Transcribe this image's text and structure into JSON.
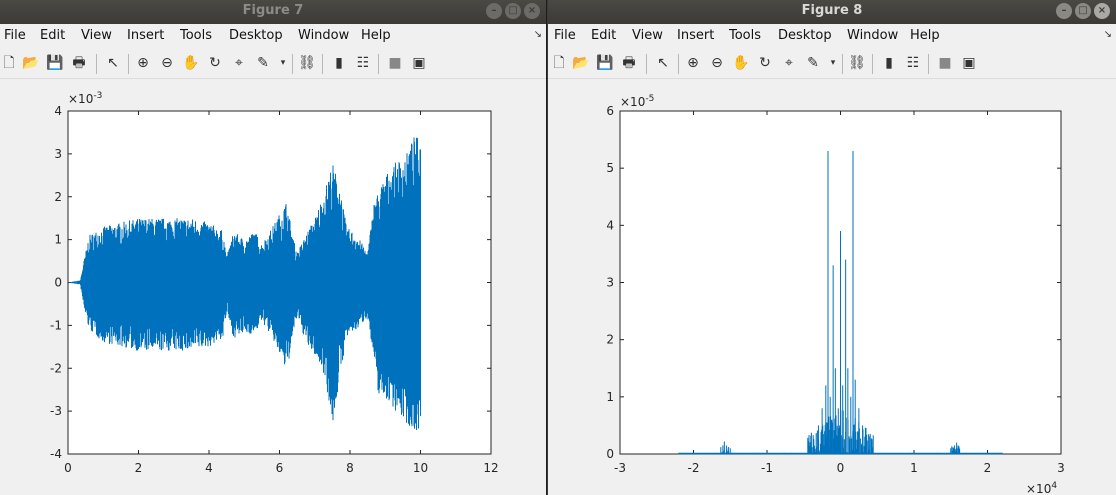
{
  "figure7": {
    "title": "Figure 7",
    "menu": [
      "File",
      "Edit",
      "View",
      "Insert",
      "Tools",
      "Desktop",
      "Window",
      "Help"
    ],
    "chart_data": {
      "type": "line",
      "title": "",
      "xlabel": "",
      "ylabel": "",
      "xlim": [
        0,
        12
      ],
      "ylim": [
        -4,
        4
      ],
      "x_ticks": [
        "0",
        "2",
        "4",
        "6",
        "8",
        "10",
        "12"
      ],
      "y_ticks": [
        "4",
        "3",
        "2",
        "1",
        "0",
        "-1",
        "-2",
        "-3",
        "-4"
      ],
      "y_exponent": "×10",
      "y_exponent_power": "-3",
      "series": [
        {
          "color": "#0072bd",
          "envelope_x": [
            0,
            0.35,
            0.45,
            0.6,
            1.0,
            1.5,
            2.0,
            2.5,
            3.0,
            3.5,
            4.0,
            4.4,
            4.5,
            4.7,
            5.0,
            5.3,
            5.5,
            5.8,
            6.2,
            6.4,
            6.5,
            6.8,
            7.0,
            7.3,
            7.5,
            7.7,
            7.9,
            8.2,
            8.5,
            8.7,
            8.8,
            9.0,
            9.3,
            9.6,
            9.8,
            10.0
          ],
          "envelope_upper": [
            0,
            0.05,
            0.5,
            1.1,
            1.3,
            1.4,
            1.5,
            1.5,
            1.5,
            1.5,
            1.4,
            1.2,
            0.6,
            1.2,
            1.0,
            1.2,
            0.9,
            1.3,
            1.9,
            1.0,
            0.7,
            1.2,
            1.5,
            2.2,
            2.8,
            2.3,
            1.3,
            1.1,
            0.7,
            2.0,
            2.1,
            2.5,
            2.8,
            3.0,
            3.4,
            3.4
          ],
          "envelope_lower": [
            0,
            -0.05,
            -0.6,
            -1.1,
            -1.4,
            -1.5,
            -1.6,
            -1.6,
            -1.6,
            -1.6,
            -1.5,
            -1.3,
            -0.7,
            -1.3,
            -1.2,
            -1.2,
            -0.9,
            -1.3,
            -2.1,
            -1.2,
            -0.8,
            -1.5,
            -1.7,
            -2.2,
            -3.4,
            -2.3,
            -1.3,
            -1.1,
            -0.8,
            -2.0,
            -2.6,
            -2.7,
            -3.0,
            -3.3,
            -3.5,
            -3.4
          ]
        }
      ]
    }
  },
  "figure8": {
    "title": "Figure 8",
    "menu": [
      "File",
      "Edit",
      "View",
      "Insert",
      "Tools",
      "Desktop",
      "Window",
      "Help"
    ],
    "chart_data": {
      "type": "line",
      "title": "",
      "xlabel": "",
      "ylabel": "",
      "xlim": [
        -3,
        3
      ],
      "ylim": [
        0,
        6
      ],
      "x_ticks": [
        "-3",
        "-2",
        "-1",
        "0",
        "1",
        "2",
        "3"
      ],
      "y_ticks": [
        "6",
        "5",
        "4",
        "3",
        "2",
        "1",
        "0"
      ],
      "y_exponent": "×10",
      "y_exponent_power": "-5",
      "x_exponent": "×10",
      "x_exponent_power": "4",
      "series": [
        {
          "color": "#0072bd",
          "peaks_x": [
            -2.2,
            -1.6,
            -1.58,
            -1.55,
            -1.5,
            -0.3,
            -0.25,
            -0.2,
            -0.17,
            -0.14,
            -0.1,
            -0.07,
            -0.03,
            0,
            0.03,
            0.07,
            0.1,
            0.14,
            0.17,
            0.2,
            0.25,
            0.3,
            0.4,
            1.5,
            1.55,
            1.58,
            1.6,
            2.2
          ],
          "peaks_y": [
            0.02,
            0.15,
            0.22,
            0.15,
            0.1,
            0.5,
            0.8,
            1.2,
            5.3,
            1.0,
            3.3,
            1.5,
            0.8,
            3.9,
            1.2,
            3.4,
            1.5,
            1.0,
            5.3,
            1.3,
            0.8,
            0.5,
            0.2,
            0.1,
            0.15,
            0.2,
            0.15,
            0.02
          ]
        }
      ]
    }
  }
}
